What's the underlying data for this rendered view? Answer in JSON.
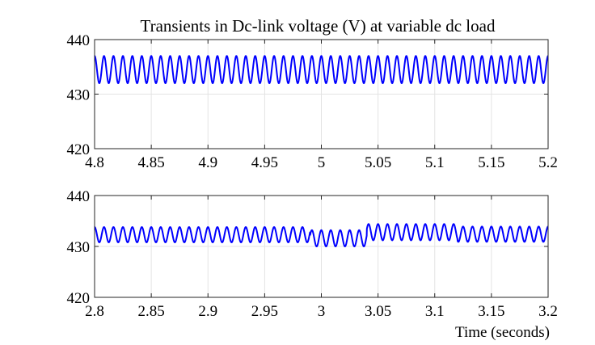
{
  "colors": {
    "series": "#0000ff",
    "axes": "#262626",
    "grid": "#e3e3e3"
  },
  "chart_data": [
    {
      "type": "line",
      "title": "Transients in Dc-link voltage (V) at variable dc load",
      "xlabel": "",
      "ylabel": "",
      "xlim": [
        4.8,
        5.2
      ],
      "ylim": [
        420,
        440
      ],
      "xticks": [
        4.8,
        4.85,
        4.9,
        4.95,
        5,
        5.05,
        5.1,
        5.15,
        5.2
      ],
      "xtick_labels": [
        "4.8",
        "4.85",
        "4.9",
        "4.95",
        "5",
        "5.05",
        "5.1",
        "5.15",
        "5.2"
      ],
      "yticks": [
        420,
        430,
        440
      ],
      "ytick_labels": [
        "420",
        "430",
        "440"
      ],
      "grid": true,
      "series": [
        {
          "color": "#0000ff",
          "waveform": {
            "kind": "sinusoid",
            "frequency_hz": 120,
            "segments": [
              {
                "t0": 4.8,
                "t1": 5.2,
                "mean": 434.5,
                "amplitude": 2.5
              }
            ]
          }
        }
      ]
    },
    {
      "type": "line",
      "title": "",
      "xlabel": "Time (seconds)",
      "ylabel": "",
      "xlim": [
        2.8,
        3.2
      ],
      "ylim": [
        420,
        440
      ],
      "xticks": [
        2.8,
        2.85,
        2.9,
        2.95,
        3,
        3.05,
        3.1,
        3.15,
        3.2
      ],
      "xtick_labels": [
        "2.8",
        "2.85",
        "2.9",
        "2.95",
        "3",
        "3.05",
        "3.1",
        "3.15",
        "3.2"
      ],
      "yticks": [
        420,
        430,
        440
      ],
      "ytick_labels": [
        "420",
        "430",
        "440"
      ],
      "grid": true,
      "series": [
        {
          "color": "#0000ff",
          "waveform": {
            "kind": "sinusoid",
            "frequency_hz": 120,
            "segments": [
              {
                "t0": 2.8,
                "t1": 2.99,
                "mean": 432.3,
                "amplitude": 1.5
              },
              {
                "t0": 2.99,
                "t1": 3.04,
                "mean": 431.6,
                "amplitude": 1.6
              },
              {
                "t0": 3.04,
                "t1": 3.12,
                "mean": 432.8,
                "amplitude": 1.6
              },
              {
                "t0": 3.12,
                "t1": 3.2,
                "mean": 432.4,
                "amplitude": 1.5
              }
            ]
          }
        }
      ]
    }
  ]
}
